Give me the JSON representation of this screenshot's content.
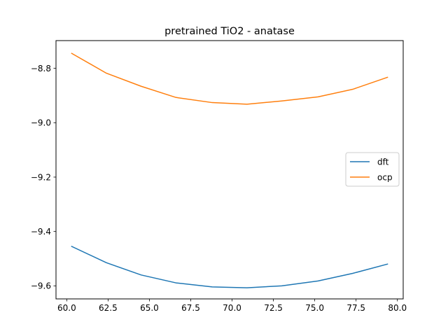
{
  "chart_data": {
    "type": "line",
    "title": "pretrained TiO2 - anatase",
    "xlabel": "",
    "ylabel": "",
    "xlim": [
      59.35,
      80.35
    ],
    "ylim": [
      -9.648,
      -8.698
    ],
    "x_ticks": [
      60.0,
      62.5,
      65.0,
      67.5,
      70.0,
      72.5,
      75.0,
      77.5,
      80.0
    ],
    "x_tick_labels": [
      "60.0",
      "62.5",
      "65.0",
      "67.5",
      "70.0",
      "72.5",
      "75.0",
      "77.5",
      "80.0"
    ],
    "y_ticks": [
      -9.6,
      -9.4,
      -9.2,
      -9.0,
      -8.8
    ],
    "y_tick_labels": [
      "−9.6",
      "−9.4",
      "−9.2",
      "−9.0",
      "−8.8"
    ],
    "x": [
      60.3,
      62.4,
      64.5,
      66.6,
      68.8,
      70.9,
      73.0,
      75.2,
      77.3,
      79.4
    ],
    "series": [
      {
        "name": "dft",
        "color": "#1f77b4",
        "values": [
          -9.455,
          -9.515,
          -9.56,
          -9.589,
          -9.604,
          -9.607,
          -9.6,
          -9.582,
          -9.554,
          -9.52
        ]
      },
      {
        "name": "ocp",
        "color": "#ff7f0e",
        "values": [
          -8.745,
          -8.818,
          -8.866,
          -8.907,
          -8.926,
          -8.932,
          -8.92,
          -8.905,
          -8.877,
          -8.833
        ]
      }
    ],
    "legend_position": "center-right",
    "grid": false
  }
}
